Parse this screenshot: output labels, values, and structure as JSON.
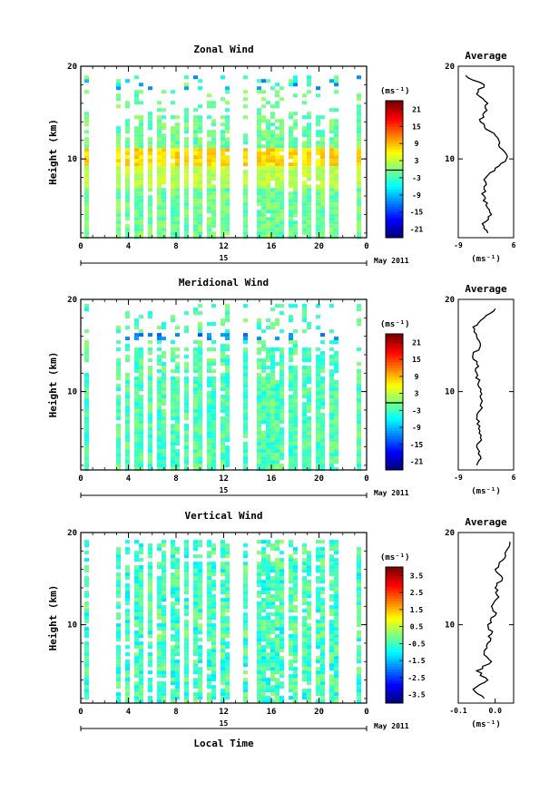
{
  "figure": {
    "xlabel": "Local Time",
    "date_label": "May 2011",
    "day_label": "15",
    "average_title": "Average",
    "unit_label": "(ms⁻¹)",
    "ylabel": "Height (km)"
  },
  "chart_data": [
    {
      "type": "heatmap",
      "title": "Zonal Wind",
      "xlabel": "Local Time",
      "ylabel": "Height (km)",
      "x_ticks": [
        "0",
        "4",
        "8",
        "12",
        "16",
        "20",
        "0"
      ],
      "y_ticks": [
        "20",
        "10"
      ],
      "xlim": [
        0,
        24
      ],
      "ylim": [
        1.5,
        20
      ],
      "colorbar": {
        "unit": "(ms⁻¹)",
        "ticks": [
          "21",
          "15",
          "9",
          "3",
          "-3",
          "-9",
          "-15",
          "-21"
        ],
        "range": [
          -24,
          24
        ]
      },
      "average": {
        "title": "Average",
        "xlabel": "(ms⁻¹)",
        "x_ticks": [
          "-9",
          "6"
        ],
        "y_ticks": [
          "20",
          "10"
        ],
        "xlim": [
          -9,
          6
        ],
        "heights": [
          2,
          3,
          4,
          5,
          6,
          7,
          8,
          9,
          10,
          11,
          12,
          13,
          14,
          15,
          16,
          17,
          18,
          19
        ],
        "values": [
          -1,
          -2.5,
          0,
          -1.5,
          -2,
          -2,
          -1.5,
          1,
          4,
          3,
          2,
          -0.5,
          -3,
          -2,
          -1,
          -4,
          -2,
          -7
        ]
      }
    },
    {
      "type": "heatmap",
      "title": "Meridional Wind",
      "xlabel": "Local Time",
      "ylabel": "Height (km)",
      "x_ticks": [
        "0",
        "4",
        "8",
        "12",
        "16",
        "20",
        "0"
      ],
      "y_ticks": [
        "20",
        "10"
      ],
      "xlim": [
        0,
        24
      ],
      "ylim": [
        1.5,
        20
      ],
      "colorbar": {
        "unit": "(ms⁻¹)",
        "ticks": [
          "21",
          "15",
          "9",
          "3",
          "-3",
          "-9",
          "-15",
          "-21"
        ],
        "range": [
          -24,
          24
        ]
      },
      "average": {
        "title": "Average",
        "xlabel": "(ms⁻¹)",
        "x_ticks": [
          "-9",
          "6"
        ],
        "y_ticks": [
          "20",
          "10"
        ],
        "xlim": [
          -9,
          6
        ],
        "heights": [
          2,
          3,
          4,
          5,
          6,
          7,
          8,
          9,
          10,
          11,
          12,
          13,
          14,
          15,
          16,
          17,
          18,
          19
        ],
        "values": [
          -4,
          -3,
          -4,
          -3,
          -3.5,
          -4,
          -3,
          -2.5,
          -3,
          -3.5,
          -4,
          -4,
          -5,
          -3,
          -4,
          -5,
          -2,
          1
        ]
      }
    },
    {
      "type": "heatmap",
      "title": "Vertical Wind",
      "xlabel": "Local Time",
      "ylabel": "Height (km)",
      "x_ticks": [
        "0",
        "4",
        "8",
        "12",
        "16",
        "20",
        "0"
      ],
      "y_ticks": [
        "20",
        "10"
      ],
      "xlim": [
        0,
        24
      ],
      "ylim": [
        1.5,
        20
      ],
      "colorbar": {
        "unit": "(ms⁻¹)",
        "ticks": [
          "3.5",
          "2.5",
          "1.5",
          "0.5",
          "-0.5",
          "-1.5",
          "-2.5",
          "-3.5"
        ],
        "range": [
          -4,
          4
        ]
      },
      "average": {
        "title": "Average",
        "xlabel": "(ms⁻¹)",
        "x_ticks": [
          "-0.1",
          "0.0"
        ],
        "y_ticks": [
          "20",
          "10"
        ],
        "xlim": [
          -0.1,
          0.05
        ],
        "heights": [
          2,
          3,
          4,
          5,
          6,
          7,
          8,
          9,
          10,
          11,
          12,
          13,
          14,
          15,
          16,
          17,
          18,
          19
        ],
        "values": [
          -0.03,
          -0.06,
          -0.02,
          -0.05,
          -0.01,
          -0.03,
          -0.02,
          -0.01,
          -0.02,
          0.0,
          -0.01,
          0.01,
          0.0,
          0.02,
          0.0,
          0.02,
          0.03,
          0.04
        ]
      }
    }
  ]
}
